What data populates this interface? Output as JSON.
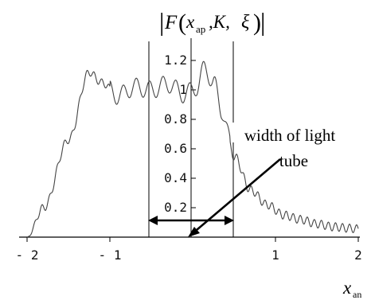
{
  "chart_data": {
    "type": "line",
    "title": {
      "bar_left": "|",
      "F": "F",
      "lparen": "(",
      "x": "x",
      "x_sub": "ap",
      "rest": ",K,",
      "xi": "ξ",
      "rparen": ")",
      "bar_right": "|"
    },
    "xlabel": {
      "main": "x",
      "sub": "an"
    },
    "xlim": [
      -2,
      2
    ],
    "ylim": [
      0,
      1.27
    ],
    "x_ticks": [
      {
        "value": -2,
        "label": "- 2"
      },
      {
        "value": -1,
        "label": "- 1"
      },
      {
        "value": 1,
        "label": "1"
      },
      {
        "value": 2,
        "label": "2"
      }
    ],
    "y_ticks": [
      {
        "value": 0.2,
        "label": "0.2"
      },
      {
        "value": 0.4,
        "label": "0.4"
      },
      {
        "value": 0.6,
        "label": "0.6"
      },
      {
        "value": 0.8,
        "label": "0.8"
      },
      {
        "value": 1.0,
        "label": "1"
      },
      {
        "value": 1.2,
        "label": "1.2"
      }
    ],
    "vertical_lines": [
      -0.5,
      0.5
    ],
    "annotation": {
      "line1": "width of light",
      "line2": "tube",
      "width_from": -0.5,
      "width_to": 0.5
    },
    "series": [
      {
        "color": "#444444",
        "envelope_x": [
          -2.0,
          -1.8,
          -1.5,
          -1.25,
          -1.1,
          -0.9,
          -0.7,
          -0.5,
          -0.3,
          -0.1,
          0.05,
          0.15,
          0.25,
          0.35,
          0.5,
          0.7,
          0.9,
          1.1,
          1.3,
          1.5,
          1.7,
          1.9,
          2.0
        ],
        "envelope_y": [
          0.0,
          0.2,
          0.66,
          1.12,
          1.05,
          0.96,
          1.02,
          1.0,
          1.04,
          0.97,
          1.02,
          1.15,
          1.05,
          0.86,
          0.55,
          0.32,
          0.22,
          0.15,
          0.12,
          0.09,
          0.07,
          0.06,
          0.055
        ],
        "ripple": [
          {
            "from": -2.0,
            "to": -1.0,
            "amp": 0.025,
            "period": 0.09
          },
          {
            "from": -1.0,
            "to": 0.45,
            "amp": 0.06,
            "period": 0.16
          },
          {
            "from": 0.45,
            "to": 2.0,
            "amp": 0.028,
            "period": 0.085
          }
        ]
      }
    ]
  }
}
